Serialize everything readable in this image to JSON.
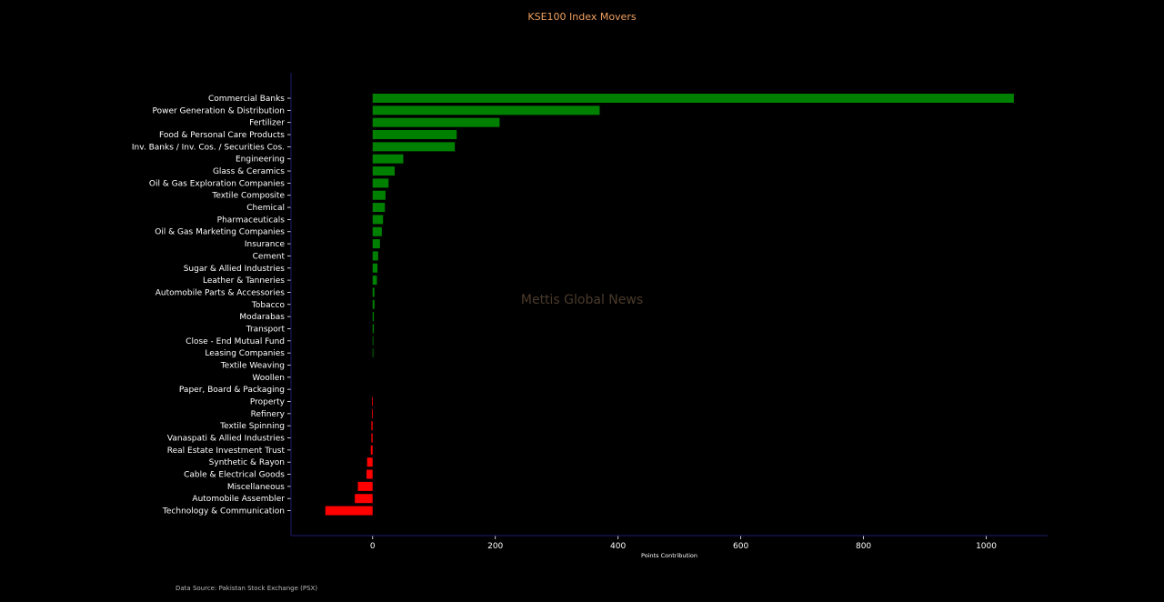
{
  "chart_data": {
    "type": "bar",
    "orientation": "horizontal",
    "title": "KSE100 Index Movers",
    "xlabel": "Points Contribution",
    "ylabel": "",
    "xlim": [
      -133,
      1100
    ],
    "xticks": [
      0,
      200,
      400,
      600,
      800,
      1000
    ],
    "grid": false,
    "categories": [
      "Commercial Banks",
      "Power Generation & Distribution",
      "Fertilizer",
      "Food & Personal Care Products",
      "Inv. Banks / Inv. Cos. / Securities Cos.",
      "Engineering",
      "Glass & Ceramics",
      "Oil & Gas Exploration Companies",
      "Textile Composite",
      "Chemical",
      "Pharmaceuticals",
      "Oil & Gas Marketing Companies",
      "Insurance",
      "Cement",
      "Sugar & Allied Industries",
      "Leather & Tanneries",
      "Automobile Parts & Accessories",
      "Tobacco",
      "Modarabas",
      "Transport",
      "Close - End Mutual Fund",
      "Leasing Companies",
      "Textile Weaving",
      "Woollen",
      "Paper, Board & Packaging",
      "Property",
      "Refinery",
      "Textile Spinning",
      "Vanaspati & Allied Industries",
      "Real Estate Investment Trust",
      "Synthetic & Rayon",
      "Cable & Electrical Goods",
      "Miscellaneous",
      "Automobile Assembler",
      "Technology & Communication"
    ],
    "values": [
      1045,
      370,
      207,
      137,
      134,
      50,
      36,
      26,
      21,
      20,
      17,
      15,
      12,
      9,
      8,
      7,
      3,
      3,
      2,
      2,
      1,
      1,
      0,
      0,
      0,
      -1,
      -1,
      -2,
      -2,
      -3,
      -9,
      -10,
      -24,
      -29,
      -77
    ],
    "colors": {
      "positive": "#008000",
      "negative": "#ff0000",
      "background": "#000000",
      "axis": "#1c1c6e",
      "title": "#f0a060",
      "watermark": "#4a3a2a"
    }
  },
  "watermark": "Mettis Global News",
  "source": "Data Source: Pakistan Stock Exchange (PSX)"
}
